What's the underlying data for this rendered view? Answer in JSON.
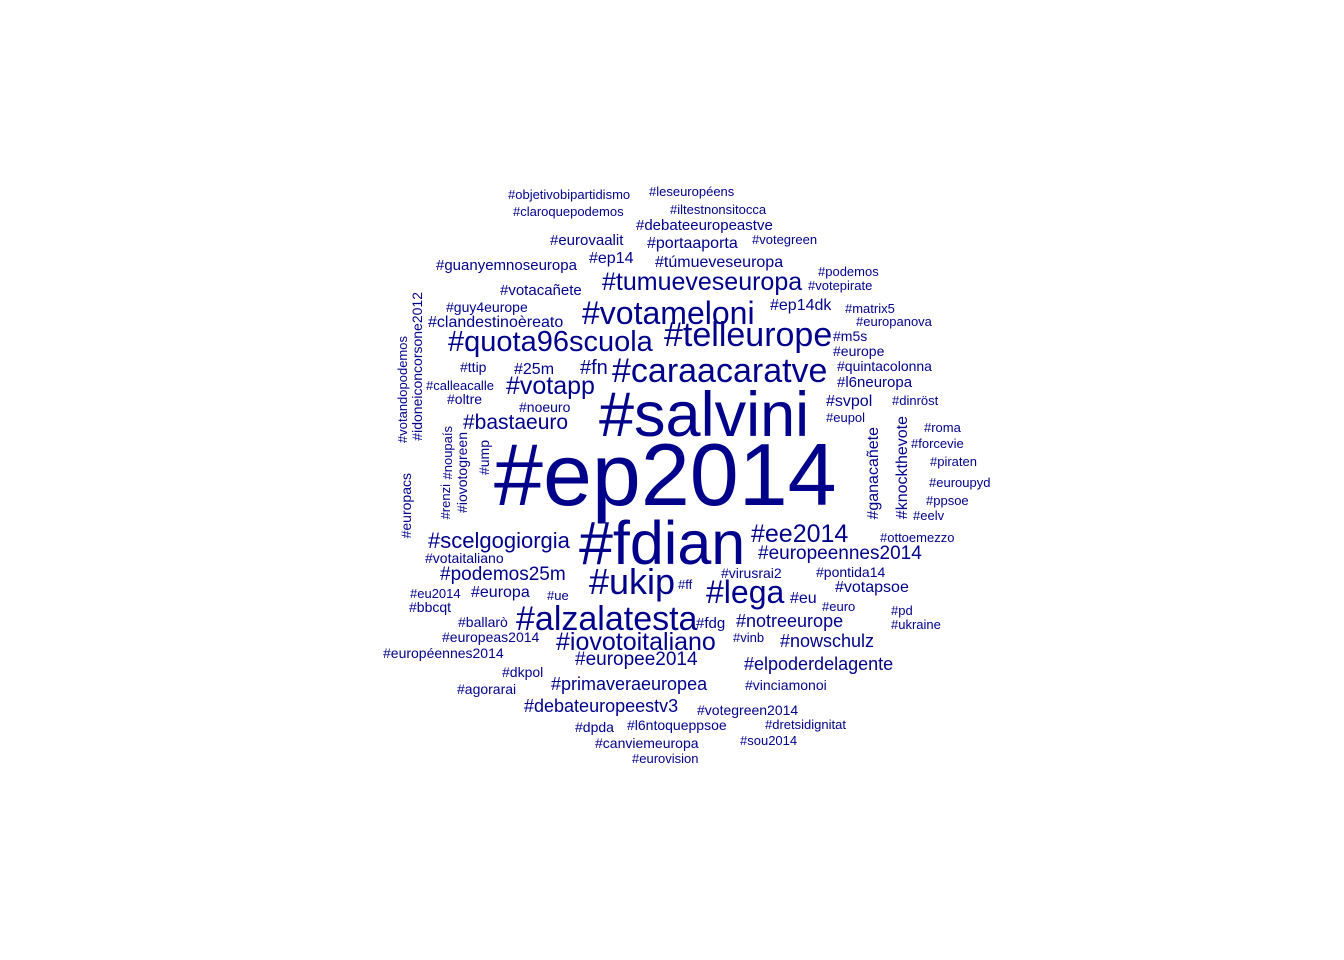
{
  "cloud": {
    "color": "#00008b",
    "words": [
      {
        "text": "#ep2014",
        "weight": 1.0
      },
      {
        "text": "#salvini",
        "weight": 0.7
      },
      {
        "text": "#fdian",
        "weight": 0.7
      },
      {
        "text": "#ukip",
        "weight": 0.4
      },
      {
        "text": "#alzalatesta",
        "weight": 0.4
      },
      {
        "text": "#caraacaratve",
        "weight": 0.4
      },
      {
        "text": "#telleurope",
        "weight": 0.4
      },
      {
        "text": "#votameloni",
        "weight": 0.38
      },
      {
        "text": "#lega",
        "weight": 0.38
      },
      {
        "text": "#quota96scuola",
        "weight": 0.34
      },
      {
        "text": "#iovotoitaliano",
        "weight": 0.33
      },
      {
        "text": "#tumueveseuropa",
        "weight": 0.33
      },
      {
        "text": "#ee2014",
        "weight": 0.3
      },
      {
        "text": "#votapp",
        "weight": 0.3
      },
      {
        "text": "#scelgogiorgia",
        "weight": 0.28
      },
      {
        "text": "#bastaeuro",
        "weight": 0.26
      },
      {
        "text": "#podemos25m",
        "weight": 0.26
      },
      {
        "text": "#europeennes2014",
        "weight": 0.26
      },
      {
        "text": "#europee2014",
        "weight": 0.26
      },
      {
        "text": "#nowschulz",
        "weight": 0.25
      },
      {
        "text": "#notreeurope",
        "weight": 0.25
      },
      {
        "text": "#primaveraeuropea",
        "weight": 0.25
      },
      {
        "text": "#debateuropeestv3",
        "weight": 0.25
      },
      {
        "text": "#elpoderdelagente",
        "weight": 0.25
      },
      {
        "text": "#fn",
        "weight": 0.25
      },
      {
        "text": "#clandestinoèreato",
        "weight": 0.22
      },
      {
        "text": "#túmueveseuropa",
        "weight": 0.21
      },
      {
        "text": "#portaaporta",
        "weight": 0.21
      },
      {
        "text": "#25m",
        "weight": 0.21
      },
      {
        "text": "#europa",
        "weight": 0.21
      },
      {
        "text": "#ep14",
        "weight": 0.21
      },
      {
        "text": "#ep14dk",
        "weight": 0.21
      },
      {
        "text": "#debateeuropeastve",
        "weight": 0.2
      },
      {
        "text": "#votapsoe",
        "weight": 0.2
      },
      {
        "text": "#eu",
        "weight": 0.2
      },
      {
        "text": "#ganacañete",
        "weight": 0.19
      },
      {
        "text": "#knockthevote",
        "weight": 0.19
      },
      {
        "text": "#eurovaalit",
        "weight": 0.19
      },
      {
        "text": "#guanyemnoseuropa",
        "weight": 0.19
      },
      {
        "text": "#votacañete",
        "weight": 0.19
      },
      {
        "text": "#svpol",
        "weight": 0.19
      },
      {
        "text": "#l6neuropa",
        "weight": 0.19
      },
      {
        "text": "#fdg",
        "weight": 0.19
      },
      {
        "text": "#votegreen2014",
        "weight": 0.18
      },
      {
        "text": "#l6ntoqueppsoe",
        "weight": 0.18
      },
      {
        "text": "#canviemeuropa",
        "weight": 0.18
      },
      {
        "text": "#pontida14",
        "weight": 0.18
      },
      {
        "text": "#europeas2014",
        "weight": 0.18
      },
      {
        "text": "#m5s",
        "weight": 0.18
      },
      {
        "text": "#europe",
        "weight": 0.18
      },
      {
        "text": "#ttip",
        "weight": 0.18
      },
      {
        "text": "#virusrai2",
        "weight": 0.18
      },
      {
        "text": "#idoneiconcorsone2012",
        "weight": 0.17
      },
      {
        "text": "#quintacolonna",
        "weight": 0.17
      },
      {
        "text": "#dkpol",
        "weight": 0.17
      },
      {
        "text": "#iovotogreen",
        "weight": 0.16
      },
      {
        "text": "#europacs",
        "weight": 0.16
      },
      {
        "text": "#guy4europe",
        "weight": 0.16
      },
      {
        "text": "#européennes2014",
        "weight": 0.16
      },
      {
        "text": "#agorarai",
        "weight": 0.16
      },
      {
        "text": "#vinciamonoi",
        "weight": 0.16
      },
      {
        "text": "#dpda",
        "weight": 0.16
      },
      {
        "text": "#ump",
        "weight": 0.16
      },
      {
        "text": "#oltre",
        "weight": 0.16
      },
      {
        "text": "#noeuro",
        "weight": 0.16
      },
      {
        "text": "#votaitaliano",
        "weight": 0.16
      },
      {
        "text": "#ballarò",
        "weight": 0.16
      },
      {
        "text": "#bbcqt",
        "weight": 0.16
      },
      {
        "text": "#votandopodemos",
        "weight": 0.15
      },
      {
        "text": "#renzi",
        "weight": 0.15
      },
      {
        "text": "#noupaís",
        "weight": 0.15
      },
      {
        "text": "#objetivobipartidismo",
        "weight": 0.15
      },
      {
        "text": "#leseuropéens",
        "weight": 0.15
      },
      {
        "text": "#claroquepodemos",
        "weight": 0.15
      },
      {
        "text": "#iltestnonsitocca",
        "weight": 0.15
      },
      {
        "text": "#votegreen",
        "weight": 0.15
      },
      {
        "text": "#podemos",
        "weight": 0.15
      },
      {
        "text": "#votepirate",
        "weight": 0.15
      },
      {
        "text": "#matrix5",
        "weight": 0.15
      },
      {
        "text": "#europanova",
        "weight": 0.15
      },
      {
        "text": "#calleacalle",
        "weight": 0.15
      },
      {
        "text": "#dinröst",
        "weight": 0.15
      },
      {
        "text": "#eupol",
        "weight": 0.15
      },
      {
        "text": "#roma",
        "weight": 0.15
      },
      {
        "text": "#forcevie",
        "weight": 0.15
      },
      {
        "text": "#piraten",
        "weight": 0.15
      },
      {
        "text": "#euroupyd",
        "weight": 0.15
      },
      {
        "text": "#ppsoe",
        "weight": 0.15
      },
      {
        "text": "#eelv",
        "weight": 0.15
      },
      {
        "text": "#ottoemezzo",
        "weight": 0.15
      },
      {
        "text": "#ff",
        "weight": 0.15
      },
      {
        "text": "#eu2014",
        "weight": 0.15
      },
      {
        "text": "#ue",
        "weight": 0.15
      },
      {
        "text": "#euro",
        "weight": 0.15
      },
      {
        "text": "#pd",
        "weight": 0.15
      },
      {
        "text": "#ukraine",
        "weight": 0.15
      },
      {
        "text": "#vinb",
        "weight": 0.15
      },
      {
        "text": "#dretsidignitat",
        "weight": 0.15
      },
      {
        "text": "#sou2014",
        "weight": 0.15
      },
      {
        "text": "#eurovision",
        "weight": 0.15
      }
    ]
  }
}
